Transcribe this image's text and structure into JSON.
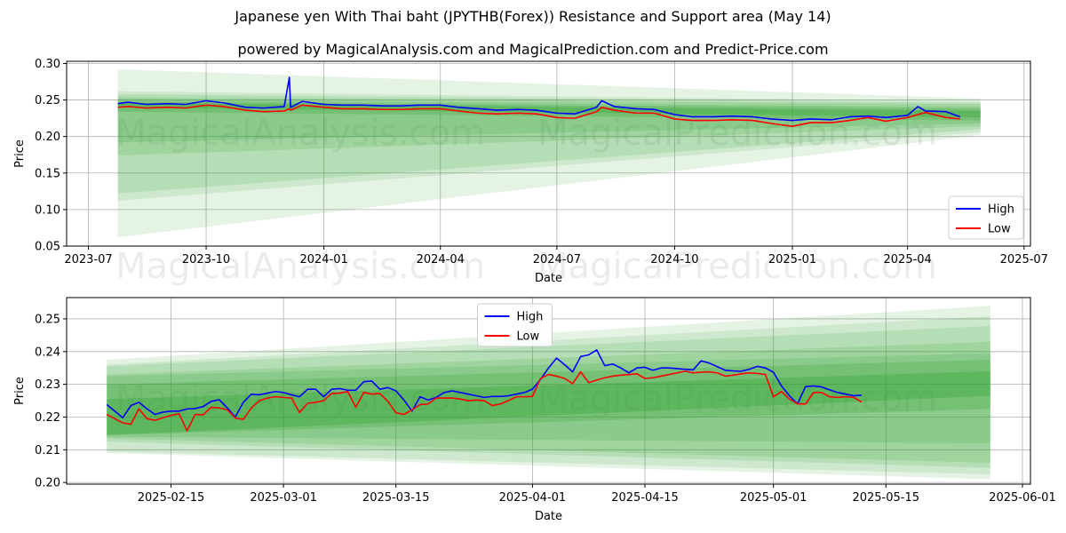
{
  "header": {
    "title": "Japanese yen With Thai baht (JPYTHB(Forex)) Resistance and Support area (May 14)",
    "subtitle": "powered by MagicalAnalysis.com and MagicalPrediction.com and Predict-Price.com"
  },
  "watermarks": [
    "MagicalAnalysis.com",
    "MagicalPrediction.com"
  ],
  "colors": {
    "high": "#0000ff",
    "low": "#ff0000",
    "band": "#2ca02c",
    "grid": "#b0b0b0"
  },
  "chart_data": [
    {
      "type": "line",
      "xlabel": "Date",
      "ylabel": "Price",
      "xlim": [
        "2023-06-14",
        "2025-07-06"
      ],
      "ylim": [
        0.05,
        0.303
      ],
      "x_ticks": [
        "2023-07",
        "2023-10",
        "2024-01",
        "2024-04",
        "2024-07",
        "2024-10",
        "2025-01",
        "2025-04",
        "2025-07"
      ],
      "x_tick_dates": [
        "2023-07-01",
        "2023-10-01",
        "2024-01-01",
        "2024-04-01",
        "2024-07-01",
        "2024-10-01",
        "2025-01-01",
        "2025-04-01",
        "2025-07-01"
      ],
      "y_ticks": [
        "0.05",
        "0.10",
        "0.15",
        "0.20",
        "0.25",
        "0.30"
      ],
      "y_tick_values": [
        0.05,
        0.1,
        0.15,
        0.2,
        0.25,
        0.3
      ],
      "legend": {
        "position": "lower-right",
        "entries": [
          "High",
          "Low"
        ]
      },
      "series": [
        {
          "name": "High",
          "x": [
            "2023-07-24",
            "2023-08-01",
            "2023-08-15",
            "2023-09-01",
            "2023-09-15",
            "2023-10-01",
            "2023-10-15",
            "2023-11-01",
            "2023-11-15",
            "2023-12-01",
            "2023-12-05",
            "2023-12-06",
            "2023-12-15",
            "2024-01-01",
            "2024-01-15",
            "2024-02-01",
            "2024-02-15",
            "2024-03-01",
            "2024-03-15",
            "2024-04-01",
            "2024-04-15",
            "2024-05-01",
            "2024-05-15",
            "2024-06-01",
            "2024-06-15",
            "2024-07-01",
            "2024-07-15",
            "2024-08-01",
            "2024-08-05",
            "2024-08-15",
            "2024-09-01",
            "2024-09-15",
            "2024-10-01",
            "2024-10-15",
            "2024-11-01",
            "2024-11-15",
            "2024-12-01",
            "2024-12-15",
            "2025-01-01",
            "2025-01-15",
            "2025-02-01",
            "2025-02-15",
            "2025-03-01",
            "2025-03-15",
            "2025-04-01",
            "2025-04-09",
            "2025-04-15",
            "2025-05-01",
            "2025-05-12"
          ],
          "values": [
            0.245,
            0.247,
            0.244,
            0.245,
            0.244,
            0.249,
            0.246,
            0.24,
            0.239,
            0.241,
            0.281,
            0.24,
            0.248,
            0.244,
            0.243,
            0.243,
            0.242,
            0.242,
            0.243,
            0.243,
            0.24,
            0.238,
            0.236,
            0.237,
            0.236,
            0.232,
            0.231,
            0.24,
            0.249,
            0.241,
            0.238,
            0.237,
            0.23,
            0.227,
            0.227,
            0.228,
            0.227,
            0.224,
            0.222,
            0.224,
            0.223,
            0.227,
            0.228,
            0.226,
            0.229,
            0.241,
            0.235,
            0.234,
            0.227
          ]
        },
        {
          "name": "Low",
          "x": [
            "2023-07-24",
            "2023-08-01",
            "2023-08-15",
            "2023-09-01",
            "2023-09-15",
            "2023-10-01",
            "2023-10-15",
            "2023-11-01",
            "2023-11-15",
            "2023-12-01",
            "2023-12-05",
            "2023-12-06",
            "2023-12-15",
            "2024-01-01",
            "2024-01-15",
            "2024-02-01",
            "2024-02-15",
            "2024-03-01",
            "2024-03-15",
            "2024-04-01",
            "2024-04-15",
            "2024-05-01",
            "2024-05-15",
            "2024-06-01",
            "2024-06-15",
            "2024-07-01",
            "2024-07-15",
            "2024-08-01",
            "2024-08-05",
            "2024-08-15",
            "2024-09-01",
            "2024-09-15",
            "2024-10-01",
            "2024-10-15",
            "2024-11-01",
            "2024-11-15",
            "2024-12-01",
            "2024-12-15",
            "2025-01-01",
            "2025-01-15",
            "2025-02-01",
            "2025-02-15",
            "2025-03-01",
            "2025-03-15",
            "2025-04-01",
            "2025-04-09",
            "2025-04-15",
            "2025-05-01",
            "2025-05-12"
          ],
          "values": [
            0.24,
            0.241,
            0.239,
            0.24,
            0.239,
            0.243,
            0.241,
            0.236,
            0.234,
            0.235,
            0.238,
            0.236,
            0.243,
            0.24,
            0.238,
            0.238,
            0.237,
            0.237,
            0.238,
            0.238,
            0.235,
            0.232,
            0.231,
            0.232,
            0.231,
            0.226,
            0.225,
            0.234,
            0.24,
            0.236,
            0.232,
            0.232,
            0.224,
            0.222,
            0.222,
            0.223,
            0.222,
            0.218,
            0.214,
            0.219,
            0.219,
            0.222,
            0.226,
            0.221,
            0.226,
            0.23,
            0.233,
            0.226,
            0.224
          ]
        }
      ],
      "bands": [
        {
          "x0": "2023-07-24",
          "x1": "2025-05-28",
          "upper0": 0.292,
          "upper1": 0.252,
          "lower0": 0.062,
          "lower1": 0.202,
          "opacity": 0.12
        },
        {
          "x0": "2023-07-24",
          "x1": "2025-05-28",
          "upper0": 0.262,
          "upper1": 0.248,
          "lower0": 0.112,
          "lower1": 0.206,
          "opacity": 0.13
        },
        {
          "x0": "2023-07-24",
          "x1": "2025-05-28",
          "upper0": 0.258,
          "upper1": 0.246,
          "lower0": 0.122,
          "lower1": 0.21,
          "opacity": 0.14
        },
        {
          "x0": "2023-07-24",
          "x1": "2025-05-28",
          "upper0": 0.254,
          "upper1": 0.244,
          "lower0": 0.174,
          "lower1": 0.214,
          "opacity": 0.16
        },
        {
          "x0": "2023-07-24",
          "x1": "2025-05-28",
          "upper0": 0.251,
          "upper1": 0.24,
          "lower0": 0.192,
          "lower1": 0.218,
          "opacity": 0.18
        },
        {
          "x0": "2023-07-24",
          "x1": "2025-05-28",
          "upper0": 0.248,
          "upper1": 0.238,
          "lower0": 0.234,
          "lower1": 0.222,
          "opacity": 0.22
        },
        {
          "x0": "2023-07-24",
          "x1": "2025-05-28",
          "upper0": 0.246,
          "upper1": 0.235,
          "lower0": 0.24,
          "lower1": 0.226,
          "opacity": 0.3
        }
      ]
    },
    {
      "type": "line",
      "xlabel": "Date",
      "ylabel": "Price",
      "xlim": [
        "2025-02-02",
        "2025-06-02"
      ],
      "ylim": [
        0.1995,
        0.2565
      ],
      "x_ticks": [
        "2025-02-15",
        "2025-03-01",
        "2025-03-15",
        "2025-04-01",
        "2025-04-15",
        "2025-05-01",
        "2025-05-15",
        "2025-06-01"
      ],
      "x_tick_dates": [
        "2025-02-15",
        "2025-03-01",
        "2025-03-15",
        "2025-04-01",
        "2025-04-15",
        "2025-05-01",
        "2025-05-15",
        "2025-06-01"
      ],
      "y_ticks": [
        "0.20",
        "0.21",
        "0.22",
        "0.23",
        "0.24",
        "0.25"
      ],
      "y_tick_values": [
        0.2,
        0.21,
        0.22,
        0.23,
        0.24,
        0.25
      ],
      "legend": {
        "position": "top-center",
        "entries": [
          "High",
          "Low"
        ]
      },
      "series": [
        {
          "name": "High",
          "x": [
            "2025-02-07",
            "2025-02-09",
            "2025-02-10",
            "2025-02-11",
            "2025-02-12",
            "2025-02-13",
            "2025-02-14",
            "2025-02-15",
            "2025-02-16",
            "2025-02-17",
            "2025-02-18",
            "2025-02-19",
            "2025-02-20",
            "2025-02-21",
            "2025-02-22",
            "2025-02-23",
            "2025-02-24",
            "2025-02-25",
            "2025-02-26",
            "2025-02-27",
            "2025-02-28",
            "2025-03-01",
            "2025-03-02",
            "2025-03-03",
            "2025-03-04",
            "2025-03-05",
            "2025-03-06",
            "2025-03-07",
            "2025-03-08",
            "2025-03-09",
            "2025-03-10",
            "2025-03-11",
            "2025-03-12",
            "2025-03-13",
            "2025-03-14",
            "2025-03-15",
            "2025-03-16",
            "2025-03-17",
            "2025-03-18",
            "2025-03-19",
            "2025-03-20",
            "2025-03-21",
            "2025-03-22",
            "2025-03-23",
            "2025-03-24",
            "2025-03-25",
            "2025-03-26",
            "2025-03-27",
            "2025-03-28",
            "2025-03-29",
            "2025-03-30",
            "2025-03-31",
            "2025-04-01",
            "2025-04-02",
            "2025-04-03",
            "2025-04-04",
            "2025-04-05",
            "2025-04-06",
            "2025-04-07",
            "2025-04-08",
            "2025-04-09",
            "2025-04-10",
            "2025-04-11",
            "2025-04-12",
            "2025-04-13",
            "2025-04-14",
            "2025-04-15",
            "2025-04-16",
            "2025-04-17",
            "2025-04-18",
            "2025-04-19",
            "2025-04-20",
            "2025-04-21",
            "2025-04-22",
            "2025-04-23",
            "2025-04-24",
            "2025-04-25",
            "2025-04-26",
            "2025-04-27",
            "2025-04-28",
            "2025-04-29",
            "2025-04-30",
            "2025-05-01",
            "2025-05-02",
            "2025-05-03",
            "2025-05-04",
            "2025-05-05",
            "2025-05-06",
            "2025-05-07",
            "2025-05-08",
            "2025-05-09",
            "2025-05-10",
            "2025-05-11",
            "2025-05-12"
          ],
          "values": [
            0.2238,
            0.2198,
            0.2235,
            0.2245,
            0.2225,
            0.2208,
            0.2215,
            0.2218,
            0.2218,
            0.2225,
            0.2226,
            0.2232,
            0.2248,
            0.2253,
            0.2228,
            0.22,
            0.2245,
            0.227,
            0.2268,
            0.2273,
            0.2278,
            0.2275,
            0.2268,
            0.2262,
            0.2285,
            0.2285,
            0.2262,
            0.2285,
            0.2287,
            0.2282,
            0.2282,
            0.2308,
            0.231,
            0.2285,
            0.229,
            0.228,
            0.2252,
            0.2218,
            0.2262,
            0.2252,
            0.226,
            0.2275,
            0.228,
            0.2275,
            0.227,
            0.2265,
            0.226,
            0.2263,
            0.2263,
            0.2265,
            0.227,
            0.2275,
            0.2285,
            0.2315,
            0.235,
            0.238,
            0.236,
            0.2338,
            0.2385,
            0.239,
            0.2405,
            0.2357,
            0.2362,
            0.235,
            0.2335,
            0.235,
            0.2352,
            0.2343,
            0.235,
            0.235,
            0.2348,
            0.2346,
            0.2344,
            0.2372,
            0.2365,
            0.2354,
            0.2343,
            0.2341,
            0.234,
            0.2346,
            0.2355,
            0.235,
            0.2337,
            0.2295,
            0.2265,
            0.224,
            0.2293,
            0.2295,
            0.2292,
            0.2283,
            0.2275,
            0.227,
            0.2265,
            0.2267
          ]
        },
        {
          "name": "Low",
          "x": [
            "2025-02-07",
            "2025-02-09",
            "2025-02-10",
            "2025-02-11",
            "2025-02-12",
            "2025-02-13",
            "2025-02-14",
            "2025-02-15",
            "2025-02-16",
            "2025-02-17",
            "2025-02-18",
            "2025-02-19",
            "2025-02-20",
            "2025-02-21",
            "2025-02-22",
            "2025-02-23",
            "2025-02-24",
            "2025-02-25",
            "2025-02-26",
            "2025-02-27",
            "2025-02-28",
            "2025-03-01",
            "2025-03-02",
            "2025-03-03",
            "2025-03-04",
            "2025-03-05",
            "2025-03-06",
            "2025-03-07",
            "2025-03-08",
            "2025-03-09",
            "2025-03-10",
            "2025-03-11",
            "2025-03-12",
            "2025-03-13",
            "2025-03-14",
            "2025-03-15",
            "2025-03-16",
            "2025-03-17",
            "2025-03-18",
            "2025-03-19",
            "2025-03-20",
            "2025-03-21",
            "2025-03-22",
            "2025-03-23",
            "2025-03-24",
            "2025-03-25",
            "2025-03-26",
            "2025-03-27",
            "2025-03-28",
            "2025-03-29",
            "2025-03-30",
            "2025-03-31",
            "2025-04-01",
            "2025-04-02",
            "2025-04-03",
            "2025-04-04",
            "2025-04-05",
            "2025-04-06",
            "2025-04-07",
            "2025-04-08",
            "2025-04-09",
            "2025-04-10",
            "2025-04-11",
            "2025-04-12",
            "2025-04-13",
            "2025-04-14",
            "2025-04-15",
            "2025-04-16",
            "2025-04-17",
            "2025-04-18",
            "2025-04-19",
            "2025-04-20",
            "2025-04-21",
            "2025-04-22",
            "2025-04-23",
            "2025-04-24",
            "2025-04-25",
            "2025-04-26",
            "2025-04-27",
            "2025-04-28",
            "2025-04-29",
            "2025-04-30",
            "2025-05-01",
            "2025-05-02",
            "2025-05-03",
            "2025-05-04",
            "2025-05-05",
            "2025-05-06",
            "2025-05-07",
            "2025-05-08",
            "2025-05-09",
            "2025-05-10",
            "2025-05-11",
            "2025-05-12"
          ],
          "values": [
            0.2208,
            0.2182,
            0.2178,
            0.2225,
            0.2195,
            0.219,
            0.2198,
            0.2205,
            0.221,
            0.2158,
            0.2208,
            0.2207,
            0.223,
            0.2228,
            0.2222,
            0.2197,
            0.2193,
            0.2228,
            0.225,
            0.2258,
            0.2262,
            0.226,
            0.2258,
            0.2214,
            0.2242,
            0.2245,
            0.225,
            0.2272,
            0.2273,
            0.2278,
            0.223,
            0.2275,
            0.227,
            0.2272,
            0.2248,
            0.2213,
            0.2208,
            0.2222,
            0.2238,
            0.224,
            0.2258,
            0.2258,
            0.2258,
            0.2255,
            0.225,
            0.2252,
            0.225,
            0.2235,
            0.224,
            0.225,
            0.2262,
            0.2262,
            0.2263,
            0.2318,
            0.233,
            0.2325,
            0.2318,
            0.2302,
            0.2338,
            0.2305,
            0.2313,
            0.232,
            0.2325,
            0.2328,
            0.233,
            0.2332,
            0.2318,
            0.232,
            0.2325,
            0.233,
            0.2335,
            0.234,
            0.2335,
            0.2337,
            0.2338,
            0.2335,
            0.2325,
            0.2328,
            0.2332,
            0.2335,
            0.2333,
            0.233,
            0.2262,
            0.2278,
            0.2255,
            0.224,
            0.224,
            0.2275,
            0.2275,
            0.2262,
            0.226,
            0.2262,
            0.226,
            0.2246
          ]
        }
      ],
      "bands": [
        {
          "x0": "2025-02-07",
          "x1": "2025-05-28",
          "upper0": 0.2375,
          "upper1": 0.254,
          "lower0": 0.209,
          "lower1": 0.201,
          "opacity": 0.12
        },
        {
          "x0": "2025-02-07",
          "x1": "2025-05-28",
          "upper0": 0.236,
          "upper1": 0.2508,
          "lower0": 0.2095,
          "lower1": 0.2025,
          "opacity": 0.13
        },
        {
          "x0": "2025-02-07",
          "x1": "2025-05-28",
          "upper0": 0.2355,
          "upper1": 0.2478,
          "lower0": 0.2125,
          "lower1": 0.2045,
          "opacity": 0.14
        },
        {
          "x0": "2025-02-07",
          "x1": "2025-05-28",
          "upper0": 0.233,
          "upper1": 0.243,
          "lower0": 0.2135,
          "lower1": 0.206,
          "opacity": 0.16
        },
        {
          "x0": "2025-02-07",
          "x1": "2025-05-28",
          "upper0": 0.2325,
          "upper1": 0.2395,
          "lower0": 0.214,
          "lower1": 0.212,
          "opacity": 0.18
        },
        {
          "x0": "2025-02-07",
          "x1": "2025-05-28",
          "upper0": 0.23,
          "upper1": 0.2375,
          "lower0": 0.2145,
          "lower1": 0.2225,
          "opacity": 0.22
        },
        {
          "x0": "2025-02-07",
          "x1": "2025-05-28",
          "upper0": 0.2255,
          "upper1": 0.234,
          "lower0": 0.2145,
          "lower1": 0.2265,
          "opacity": 0.3
        }
      ]
    }
  ]
}
